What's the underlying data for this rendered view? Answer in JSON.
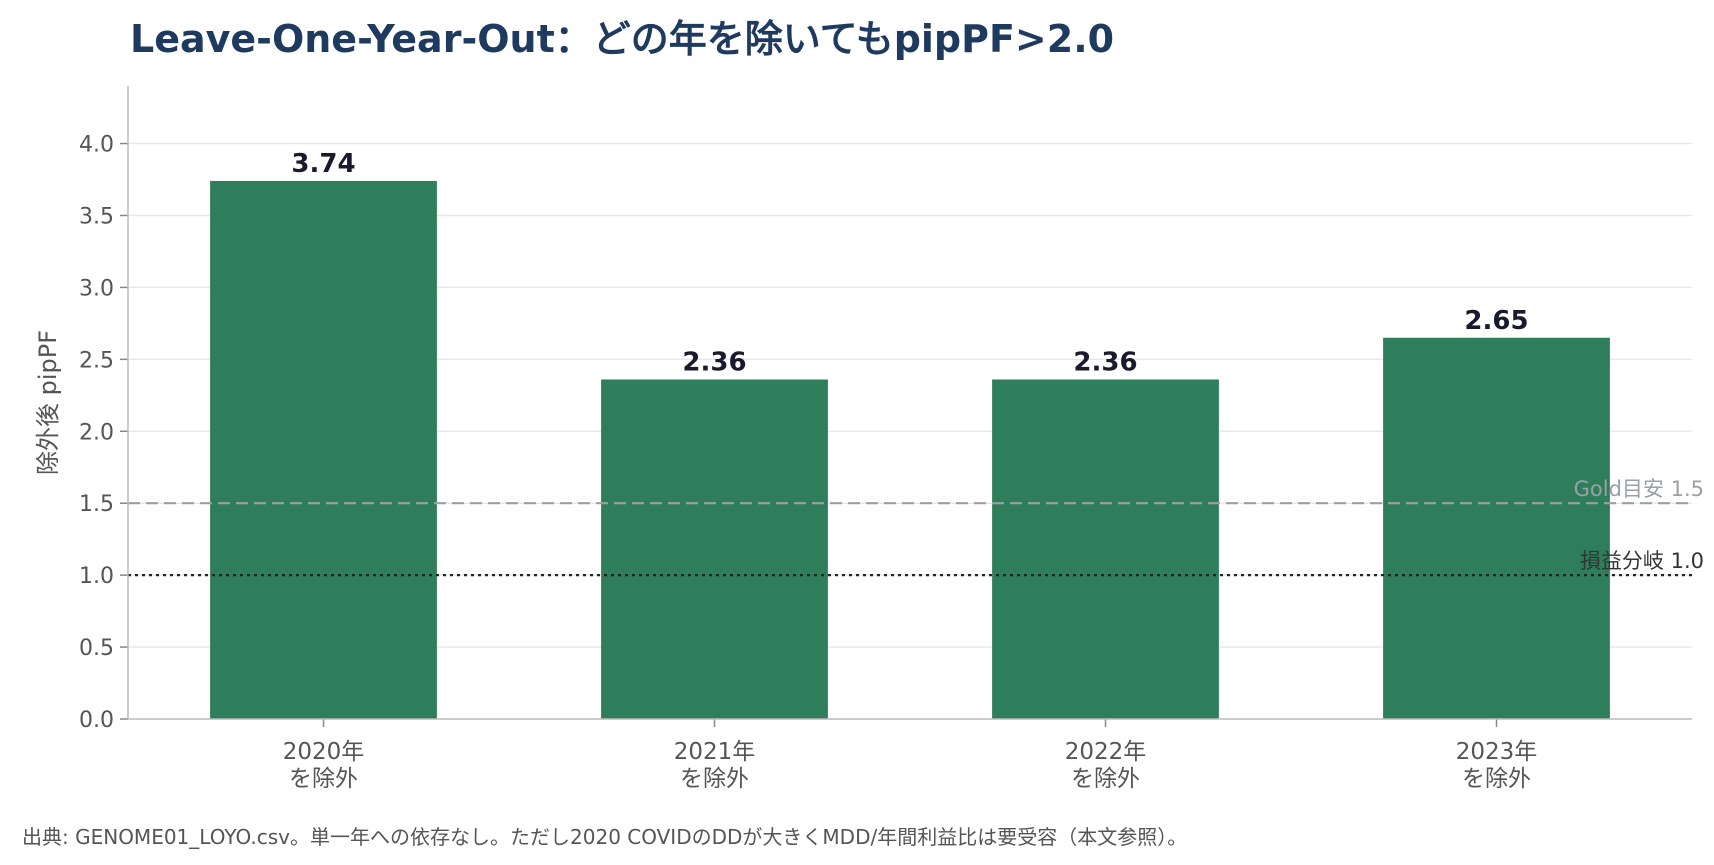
{
  "chart_data": {
    "type": "bar",
    "title": "Leave-One-Year-Out：どの年を除いてもpipPF>2.0",
    "xlabel": "",
    "ylabel": "除外後 pipPF",
    "categories": [
      [
        "2020年",
        "を除外"
      ],
      [
        "2021年",
        "を除外"
      ],
      [
        "2022年",
        "を除外"
      ],
      [
        "2023年",
        "を除外"
      ]
    ],
    "values": [
      3.74,
      2.36,
      2.36,
      2.65
    ],
    "value_labels": [
      "3.74",
      "2.36",
      "2.36",
      "2.65"
    ],
    "ylim": [
      0,
      4.4
    ],
    "yticks": [
      0.0,
      0.5,
      1.0,
      1.5,
      2.0,
      2.5,
      3.0,
      3.5,
      4.0
    ],
    "ytick_labels": [
      "0.0",
      "0.5",
      "1.0",
      "1.5",
      "2.0",
      "2.5",
      "3.0",
      "3.5",
      "4.0"
    ],
    "grid": "horizontal",
    "bar_color": "#2e7d5b",
    "reference_lines": [
      {
        "value": 1.5,
        "label": "Gold目安 1.5",
        "style": "dashed",
        "color": "#9aa0a6"
      },
      {
        "value": 1.0,
        "label": "損益分岐 1.0",
        "style": "dotted",
        "color": "#222222"
      }
    ]
  },
  "footnote": "出典: GENOME01_LOYO.csv。単一年への依存なし。ただし2020 COVIDのDDが大きくMDD/年間利益比は要受容（本文参照）。"
}
